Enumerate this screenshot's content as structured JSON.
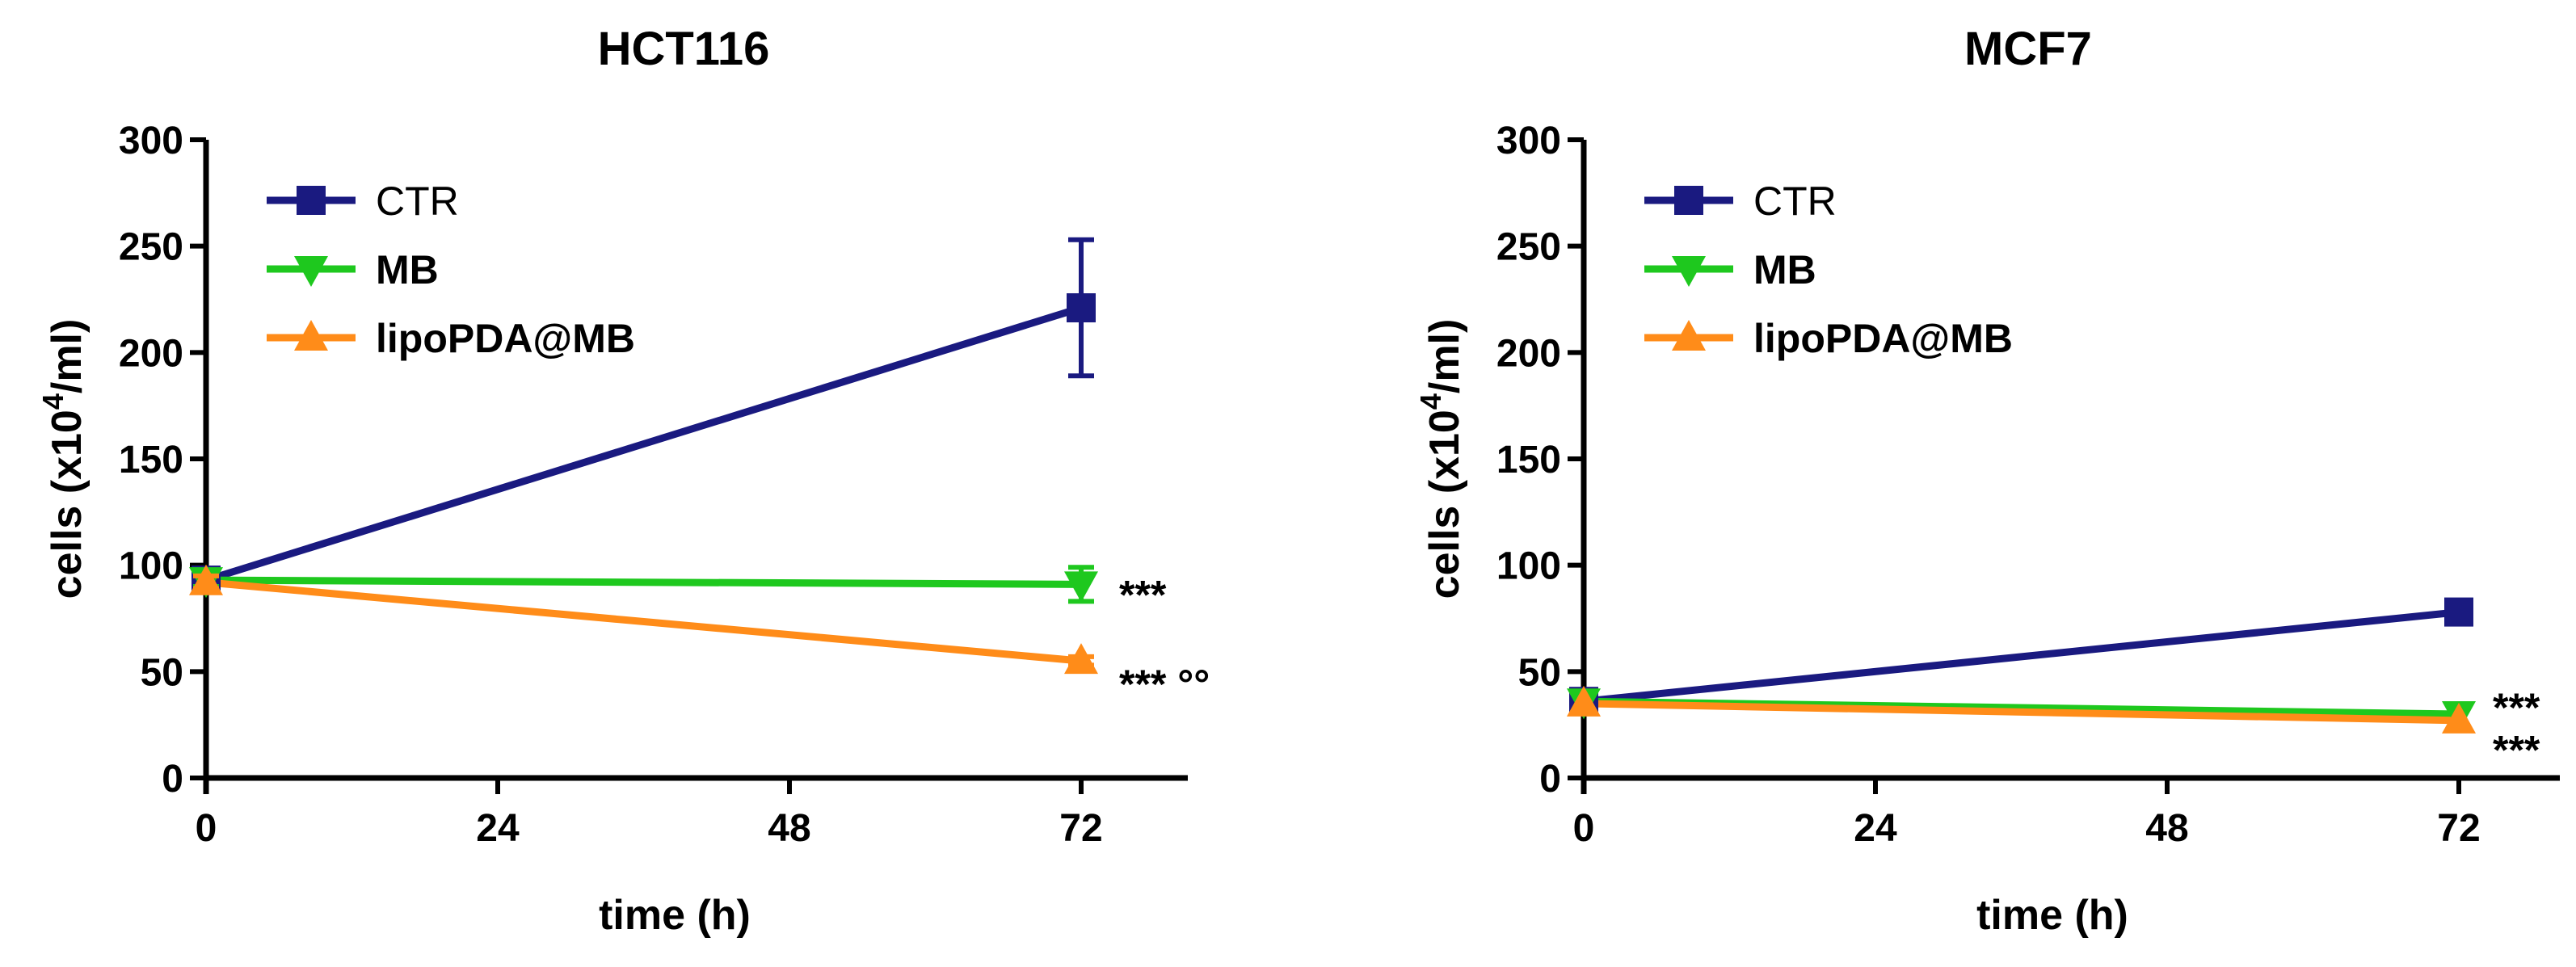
{
  "chart_data": [
    {
      "type": "line",
      "title": "HCT116",
      "xlabel": "time (h)",
      "ylabel_main": "cells (x10",
      "ylabel_sup": "4",
      "ylabel_tail": "/ml)",
      "xlim": [
        0,
        80
      ],
      "ylim": [
        0,
        300
      ],
      "xticks": [
        0,
        24,
        48,
        72
      ],
      "yticks": [
        0,
        50,
        100,
        150,
        200,
        250,
        300
      ],
      "x": [
        0,
        72
      ],
      "series": [
        {
          "name": "CTR",
          "color": "#1a1a80",
          "marker": "square",
          "values": [
            93,
            221
          ],
          "err": [
            5,
            32
          ]
        },
        {
          "name": "MB",
          "color": "#1ec81e",
          "marker": "triangle-down",
          "values": [
            93,
            91
          ],
          "err": [
            3,
            8
          ]
        },
        {
          "name": "lipoPDA@MB",
          "color": "#ff8c19",
          "marker": "triangle-up",
          "values": [
            92,
            55
          ],
          "err": [
            3,
            2
          ]
        }
      ],
      "annotations": [
        {
          "text": "***",
          "x": 72,
          "y": 91
        },
        {
          "text": "***  °°",
          "x": 72,
          "y": 49
        }
      ]
    },
    {
      "type": "line",
      "title": "MCF7",
      "xlabel": "time (h)",
      "ylabel_main": "cells (x10",
      "ylabel_sup": "4",
      "ylabel_tail": "/ml)",
      "xlim": [
        0,
        80
      ],
      "ylim": [
        0,
        300
      ],
      "xticks": [
        0,
        24,
        48,
        72
      ],
      "yticks": [
        0,
        50,
        100,
        150,
        200,
        250,
        300
      ],
      "x": [
        0,
        72
      ],
      "series": [
        {
          "name": "CTR",
          "color": "#1a1a80",
          "marker": "square",
          "values": [
            36,
            78
          ],
          "err": [
            0,
            0
          ]
        },
        {
          "name": "MB",
          "color": "#1ec81e",
          "marker": "triangle-down",
          "values": [
            36,
            30
          ],
          "err": [
            0,
            0
          ]
        },
        {
          "name": "lipoPDA@MB",
          "color": "#ff8c19",
          "marker": "triangle-up",
          "values": [
            35,
            27
          ],
          "err": [
            0,
            0
          ]
        }
      ],
      "annotations": [
        {
          "text": "***",
          "x": 72,
          "y": 38
        },
        {
          "text": "***",
          "x": 72,
          "y": 18
        }
      ]
    }
  ]
}
